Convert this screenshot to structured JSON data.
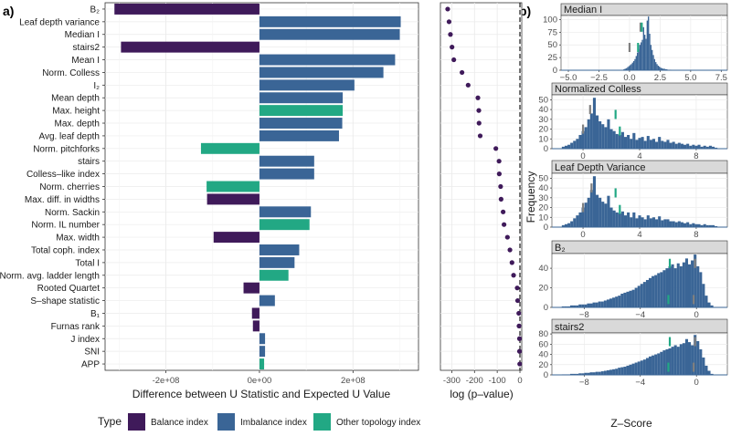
{
  "panel_labels": {
    "a": "a)",
    "b": "b)"
  },
  "colors": {
    "balance": "#3f1a5a",
    "imbalance": "#3a6596",
    "other": "#22a884",
    "grid": "#ebebeb",
    "dots": "#3f1a5a",
    "hist": "#3a6596"
  },
  "legend": {
    "title": "Type",
    "items": [
      {
        "key": "balance",
        "label": "Balance index"
      },
      {
        "key": "imbalance",
        "label": "Imbalance index"
      },
      {
        "key": "other",
        "label": "Other topology index"
      }
    ]
  },
  "chart_data": [
    {
      "id": "u_statistic",
      "type": "bar",
      "orientation": "horizontal",
      "xlabel": "Difference between U Statistic and Expected U Value",
      "xlim": [
        -330000000,
        340000000
      ],
      "xticks": [
        {
          "v": -200000000,
          "label": "-2e+08"
        },
        {
          "v": 0,
          "label": "0e+00"
        },
        {
          "v": 200000000,
          "label": "2e+08"
        }
      ],
      "categories": [
        {
          "label": "B₂",
          "type": "balance"
        },
        {
          "label": "Leaf depth variance",
          "type": "imbalance"
        },
        {
          "label": "Median I",
          "type": "imbalance"
        },
        {
          "label": "stairs2",
          "type": "balance"
        },
        {
          "label": "Mean I",
          "type": "imbalance"
        },
        {
          "label": "Norm. Colless",
          "type": "imbalance"
        },
        {
          "label": "I₂",
          "type": "imbalance"
        },
        {
          "label": "Mean depth",
          "type": "imbalance"
        },
        {
          "label": "Max. height",
          "type": "other"
        },
        {
          "label": "Max. depth",
          "type": "imbalance"
        },
        {
          "label": "Avg. leaf depth",
          "type": "imbalance"
        },
        {
          "label": "Norm. pitchforks",
          "type": "other"
        },
        {
          "label": "stairs",
          "type": "imbalance"
        },
        {
          "label": "Colless–like index",
          "type": "imbalance"
        },
        {
          "label": "Norm. cherries",
          "type": "other"
        },
        {
          "label": "Max. diff. in widths",
          "type": "balance"
        },
        {
          "label": "Norm. Sackin",
          "type": "imbalance"
        },
        {
          "label": "Norm. IL number",
          "type": "other"
        },
        {
          "label": "Max. width",
          "type": "balance"
        },
        {
          "label": "Total coph. index",
          "type": "imbalance"
        },
        {
          "label": "Total I",
          "type": "imbalance"
        },
        {
          "label": "Norm. avg. ladder length",
          "type": "other"
        },
        {
          "label": "Rooted Quartet",
          "type": "balance"
        },
        {
          "label": "S–shape statistic",
          "type": "imbalance"
        },
        {
          "label": "B₁",
          "type": "balance"
        },
        {
          "label": "Furnas rank",
          "type": "balance"
        },
        {
          "label": "J index",
          "type": "imbalance"
        },
        {
          "label": "SNI",
          "type": "imbalance"
        },
        {
          "label": "APP",
          "type": "other"
        }
      ],
      "values": [
        -310000000,
        302000000,
        300000000,
        -296000000,
        290000000,
        265000000,
        203000000,
        178000000,
        178000000,
        177000000,
        170000000,
        -125000000,
        117000000,
        117000000,
        -113000000,
        -112000000,
        110000000,
        107000000,
        -98000000,
        85000000,
        75000000,
        62000000,
        -34000000,
        33000000,
        -16000000,
        -14000000,
        12000000,
        12000000,
        10000000
      ]
    },
    {
      "id": "log_p",
      "type": "scatter",
      "xlabel": "log (p–value)",
      "xlim": [
        -350,
        8
      ],
      "xticks": [
        {
          "v": -300,
          "label": "-300"
        },
        {
          "v": -200,
          "label": "-200"
        },
        {
          "v": -100,
          "label": "-100"
        },
        {
          "v": 0,
          "label": "0"
        }
      ],
      "vline": 0,
      "values": [
        -318,
        -312,
        -306,
        -299,
        -291,
        -255,
        -228,
        -185,
        -181,
        -180,
        -175,
        -106,
        -92,
        -91,
        -85,
        -83,
        -74,
        -70,
        -55,
        -44,
        -35,
        -28,
        -12,
        -10,
        -5,
        -4,
        -2,
        -2,
        -1
      ]
    },
    {
      "id": "median_i",
      "type": "histogram",
      "title": "Median I",
      "xlim": [
        -5.6,
        8
      ],
      "xticks": [
        {
          "v": -5,
          "label": "−5.0"
        },
        {
          "v": -2.5,
          "label": "−2.5"
        },
        {
          "v": 0,
          "label": "0.0"
        },
        {
          "v": 2.5,
          "label": "2.5"
        },
        {
          "v": 5,
          "label": "5.0"
        },
        {
          "v": 7.5,
          "label": "7.5"
        }
      ],
      "ylim": [
        0,
        108
      ],
      "yticks": [
        {
          "v": 0,
          "label": "0"
        },
        {
          "v": 25,
          "label": "25"
        },
        {
          "v": 50,
          "label": "50"
        },
        {
          "v": 75,
          "label": "75"
        },
        {
          "v": 100,
          "label": "100"
        }
      ],
      "bins": {
        "start": -0.5,
        "width": 0.1,
        "counts": [
          2,
          3,
          4,
          6,
          8,
          10,
          12,
          15,
          18,
          22,
          28,
          35,
          42,
          50,
          55,
          60,
          85,
          70,
          62,
          98,
          106,
          72,
          50,
          40,
          30,
          22,
          16,
          12,
          9,
          7,
          5,
          4,
          3,
          3,
          2,
          2,
          1,
          1,
          1
        ]
      },
      "markers": [
        {
          "v": 0.0,
          "color": "grey",
          "level": 45
        },
        {
          "v": 0.9,
          "color": "grey",
          "level": 85
        },
        {
          "v": 0.7,
          "color": "green",
          "level": 45
        },
        {
          "v": 1.0,
          "color": "green",
          "level": 85
        }
      ]
    },
    {
      "id": "normalized_colless",
      "type": "histogram",
      "title": "Normalized Colless",
      "xlim": [
        -2.2,
        10.2
      ],
      "xticks": [
        {
          "v": 0,
          "label": "0"
        },
        {
          "v": 4,
          "label": "4"
        },
        {
          "v": 8,
          "label": "8"
        }
      ],
      "ylim": [
        0,
        55
      ],
      "yticks": [
        {
          "v": 0,
          "label": "0"
        },
        {
          "v": 10,
          "label": "10"
        },
        {
          "v": 20,
          "label": "20"
        },
        {
          "v": 30,
          "label": "30"
        },
        {
          "v": 40,
          "label": "40"
        },
        {
          "v": 50,
          "label": "50"
        }
      ],
      "bins": {
        "start": -1.5,
        "width": 0.2,
        "counts": [
          2,
          3,
          4,
          6,
          8,
          10,
          14,
          18,
          22,
          30,
          36,
          52,
          34,
          28,
          25,
          22,
          30,
          20,
          18,
          15,
          14,
          17,
          12,
          14,
          10,
          16,
          9,
          11,
          12,
          8,
          13,
          9,
          10,
          7,
          12,
          8,
          7,
          9,
          6,
          7,
          5,
          6,
          5,
          4,
          5,
          3,
          4,
          3,
          4,
          2,
          3,
          2,
          3,
          2,
          1
        ]
      },
      "markers": [
        {
          "v": 0.0,
          "color": "grey",
          "level": 20
        },
        {
          "v": 0.5,
          "color": "grey",
          "level": 40
        },
        {
          "v": 2.6,
          "color": "green",
          "level": 18
        },
        {
          "v": 2.3,
          "color": "green",
          "level": 35
        }
      ]
    },
    {
      "id": "leaf_depth_variance",
      "type": "histogram",
      "title": "Leaf Depth Variance",
      "xlim": [
        -2.2,
        10.2
      ],
      "xticks": [
        {
          "v": 0,
          "label": "0"
        },
        {
          "v": 4,
          "label": "4"
        },
        {
          "v": 8,
          "label": "8"
        }
      ],
      "ylim": [
        0,
        55
      ],
      "yticks": [
        {
          "v": 0,
          "label": "0"
        },
        {
          "v": 10,
          "label": "10"
        },
        {
          "v": 20,
          "label": "20"
        },
        {
          "v": 30,
          "label": "30"
        },
        {
          "v": 40,
          "label": "40"
        },
        {
          "v": 50,
          "label": "50"
        }
      ],
      "bins": {
        "start": -1.5,
        "width": 0.2,
        "counts": [
          2,
          3,
          4,
          6,
          9,
          12,
          15,
          20,
          25,
          30,
          38,
          52,
          33,
          30,
          26,
          24,
          32,
          20,
          17,
          15,
          14,
          16,
          12,
          15,
          10,
          15,
          9,
          12,
          10,
          8,
          12,
          9,
          10,
          8,
          11,
          7,
          8,
          8,
          6,
          6,
          5,
          6,
          5,
          4,
          5,
          3,
          4,
          3,
          3,
          2,
          3,
          2,
          2,
          2,
          1
        ]
      },
      "markers": [
        {
          "v": 0.0,
          "color": "grey",
          "level": 20
        },
        {
          "v": 0.6,
          "color": "grey",
          "level": 40
        },
        {
          "v": 2.6,
          "color": "green",
          "level": 18
        },
        {
          "v": 2.3,
          "color": "green",
          "level": 35
        }
      ]
    },
    {
      "id": "b2",
      "type": "histogram",
      "title": "B₂",
      "xlim": [
        -10.3,
        2.2
      ],
      "xticks": [
        {
          "v": -8,
          "label": "−8"
        },
        {
          "v": -4,
          "label": "−4"
        },
        {
          "v": 0,
          "label": "0"
        }
      ],
      "ylim": [
        0,
        55
      ],
      "yticks": [
        {
          "v": 0,
          "label": "0"
        },
        {
          "v": 20,
          "label": "20"
        },
        {
          "v": 40,
          "label": "40"
        }
      ],
      "bins": {
        "start": -9.6,
        "width": 0.2,
        "counts": [
          1,
          1,
          1,
          2,
          2,
          2,
          3,
          3,
          3,
          4,
          4,
          5,
          5,
          6,
          6,
          7,
          8,
          9,
          10,
          11,
          12,
          14,
          15,
          16,
          17,
          18,
          20,
          22,
          24,
          26,
          28,
          30,
          32,
          33,
          35,
          36,
          38,
          40,
          42,
          44,
          40,
          45,
          42,
          46,
          50,
          44,
          48,
          54,
          42,
          36,
          24,
          12,
          5,
          2
        ]
      },
      "markers": [
        {
          "v": -2.0,
          "color": "green",
          "level": 8
        },
        {
          "v": -1.9,
          "color": "green",
          "level": 45
        },
        {
          "v": -0.2,
          "color": "grey",
          "level": 8
        },
        {
          "v": -0.1,
          "color": "grey",
          "level": 45
        }
      ]
    },
    {
      "id": "stairs2",
      "type": "histogram",
      "title": "stairs2",
      "xlim": [
        -10.3,
        2.2
      ],
      "xticks": [
        {
          "v": -8,
          "label": "−8"
        },
        {
          "v": -4,
          "label": "−4"
        },
        {
          "v": 0,
          "label": "0"
        }
      ],
      "ylim": [
        0,
        82
      ],
      "yticks": [
        {
          "v": 0,
          "label": "0"
        },
        {
          "v": 20,
          "label": "20"
        },
        {
          "v": 40,
          "label": "40"
        },
        {
          "v": 60,
          "label": "60"
        },
        {
          "v": 80,
          "label": "80"
        }
      ],
      "bins": {
        "start": -9.6,
        "width": 0.2,
        "counts": [
          1,
          1,
          1,
          2,
          2,
          2,
          3,
          3,
          4,
          4,
          5,
          5,
          6,
          6,
          7,
          8,
          9,
          10,
          11,
          12,
          14,
          15,
          16,
          18,
          20,
          22,
          24,
          26,
          28,
          30,
          33,
          36,
          38,
          40,
          42,
          45,
          48,
          50,
          52,
          55,
          58,
          55,
          60,
          62,
          70,
          64,
          58,
          78,
          66,
          50,
          34,
          18,
          8,
          2
        ]
      },
      "markers": [
        {
          "v": -2.0,
          "color": "green",
          "level": 15
        },
        {
          "v": -1.9,
          "color": "green",
          "level": 65
        },
        {
          "v": -0.2,
          "color": "grey",
          "level": 15
        },
        {
          "v": -0.1,
          "color": "grey",
          "level": 65
        }
      ]
    }
  ],
  "hist_axis": {
    "xlabel": "Z–Score",
    "ylabel": "Frequency"
  }
}
